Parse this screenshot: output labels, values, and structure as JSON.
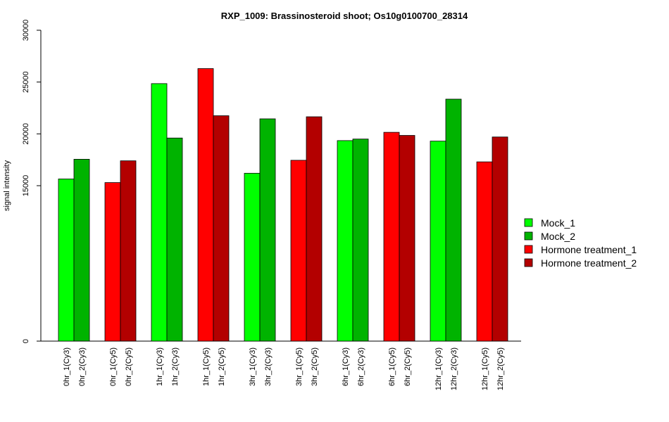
{
  "chart_data": {
    "type": "bar",
    "title": "RXP_1009: Brassinosteroid shoot; Os10g0100700_28314",
    "xlabel": "",
    "ylabel": "signal intensity",
    "ylim": [
      0,
      30000
    ],
    "yticks": [
      0,
      15000,
      20000,
      25000,
      30000
    ],
    "categories": [
      "0hr_1(Cy3)",
      "0hr_2(Cy3)",
      "0hr_1(Cy5)",
      "0hr_2(Cy5)",
      "1hr_1(Cy3)",
      "1hr_2(Cy3)",
      "1hr_1(Cy5)",
      "1hr_2(Cy5)",
      "3hr_1(Cy3)",
      "3hr_2(Cy3)",
      "3hr_1(Cy5)",
      "3hr_2(Cy5)",
      "6hr_1(Cy3)",
      "6hr_2(Cy3)",
      "6hr_1(Cy5)",
      "6hr_2(Cy5)",
      "12hr_1(Cy3)",
      "12hr_2(Cy3)",
      "12hr_1(Cy5)",
      "12hr_2(Cy5)"
    ],
    "values": [
      15650,
      17550,
      15300,
      17400,
      24850,
      19600,
      26300,
      21750,
      16200,
      21450,
      17450,
      21650,
      19350,
      19500,
      20150,
      19850,
      19300,
      23350,
      17300,
      19700
    ],
    "bar_series": [
      0,
      1,
      2,
      3,
      0,
      1,
      2,
      3,
      0,
      1,
      2,
      3,
      0,
      1,
      2,
      3,
      0,
      1,
      2,
      3
    ],
    "series": [
      {
        "name": "Mock_1",
        "color": "#00ff00"
      },
      {
        "name": "Mock_2",
        "color": "#00b300"
      },
      {
        "name": "Hormone treatment_1",
        "color": "#ff0000"
      },
      {
        "name": "Hormone treatment_2",
        "color": "#b30000"
      }
    ],
    "legend_position": "right",
    "grid": false
  }
}
